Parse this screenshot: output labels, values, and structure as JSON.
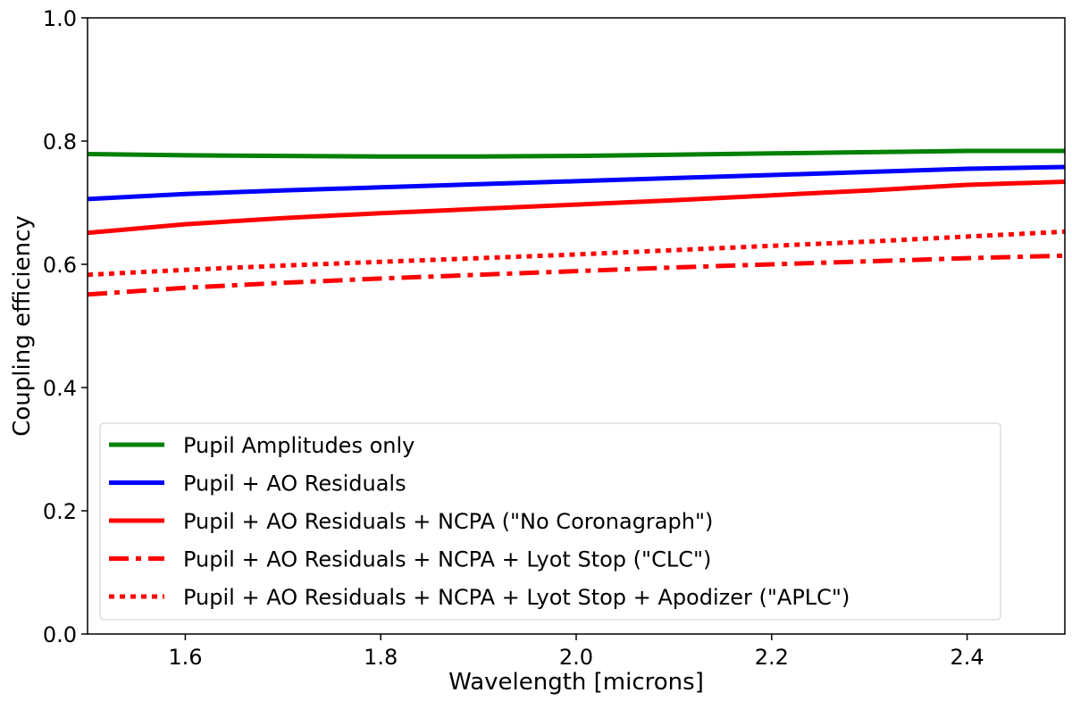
{
  "chart_data": {
    "type": "line",
    "title": "",
    "xlabel": "Wavelength [microns]",
    "ylabel": "Coupling efficiency",
    "xlim": [
      1.5,
      2.5
    ],
    "ylim": [
      0.0,
      1.0
    ],
    "xticks": [
      1.6,
      1.8,
      2.0,
      2.2,
      2.4
    ],
    "xtick_labels": [
      "1.6",
      "1.8",
      "2.0",
      "2.2",
      "2.4"
    ],
    "yticks": [
      0.0,
      0.2,
      0.4,
      0.6,
      0.8,
      1.0
    ],
    "ytick_labels": [
      "0.0",
      "0.2",
      "0.4",
      "0.6",
      "0.8",
      "1.0"
    ],
    "grid": false,
    "legend_position": "lower-center",
    "x": [
      1.5,
      1.6,
      1.7,
      1.8,
      1.9,
      2.0,
      2.1,
      2.2,
      2.3,
      2.4,
      2.5
    ],
    "series": [
      {
        "name": "Pupil Amplitudes only",
        "color": "#008000",
        "linestyle": "solid",
        "values": [
          0.779,
          0.777,
          0.776,
          0.775,
          0.775,
          0.776,
          0.778,
          0.78,
          0.782,
          0.784,
          0.784
        ]
      },
      {
        "name": "Pupil + AO Residuals",
        "color": "#0000ff",
        "linestyle": "solid",
        "values": [
          0.706,
          0.714,
          0.72,
          0.725,
          0.73,
          0.735,
          0.74,
          0.745,
          0.75,
          0.755,
          0.758
        ]
      },
      {
        "name": "Pupil + AO Residuals + NCPA (\"No Coronagraph\")",
        "color": "#ff0000",
        "linestyle": "solid",
        "values": [
          0.651,
          0.665,
          0.675,
          0.683,
          0.69,
          0.697,
          0.704,
          0.712,
          0.72,
          0.729,
          0.734
        ]
      },
      {
        "name": "Pupil + AO Residuals + NCPA + Lyot Stop (\"CLC\")",
        "color": "#ff0000",
        "linestyle": "dashdot",
        "values": [
          0.551,
          0.562,
          0.57,
          0.577,
          0.583,
          0.589,
          0.595,
          0.6,
          0.605,
          0.61,
          0.614
        ]
      },
      {
        "name": "Pupil + AO Residuals + NCPA + Lyot Stop + Apodizer (\"APLC\")",
        "color": "#ff0000",
        "linestyle": "dotted",
        "values": [
          0.583,
          0.591,
          0.598,
          0.604,
          0.61,
          0.616,
          0.623,
          0.63,
          0.637,
          0.645,
          0.653
        ]
      }
    ]
  }
}
